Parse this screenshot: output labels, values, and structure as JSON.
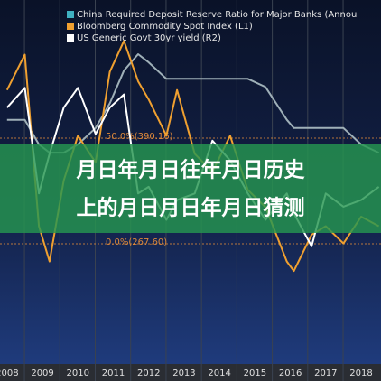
{
  "chart_data": {
    "type": "line",
    "overlay_title": [
      "月日年月日往年月日历史",
      "上的月日月日年月日猜测"
    ],
    "x": [
      2008.0,
      2008.5,
      2008.9,
      2009.2,
      2009.6,
      2010.0,
      2010.5,
      2010.9,
      2011.3,
      2011.7,
      2012.0,
      2012.5,
      2012.8,
      2013.3,
      2013.8,
      2014.3,
      2014.8,
      2015.3,
      2015.9,
      2016.1,
      2016.6,
      2017.0,
      2017.5,
      2018.0,
      2018.5
    ],
    "xlim": [
      2007.8,
      2018.56
    ],
    "xticks": [
      2008,
      2009,
      2010,
      2011,
      2012,
      2013,
      2014,
      2015,
      2016,
      2017,
      2018
    ],
    "ylim": [
      131.4,
      550.4
    ],
    "y2lim": [
      0.46,
      5.93
    ],
    "y3lim": [
      2.8,
      24.8
    ],
    "series": [
      {
        "name": "China Required Deposit Reserve Ratio for Major Banks (Annou",
        "color": "#9fb0b8",
        "legend_color": "#3fb0c0",
        "axis": "y3",
        "values": [
          17.5,
          17.5,
          16,
          15.5,
          15.5,
          16,
          17,
          18.5,
          20.5,
          21.5,
          21,
          20,
          20,
          20,
          20,
          20,
          20,
          19.5,
          17.5,
          17,
          17,
          17,
          17,
          16,
          15.5
        ]
      },
      {
        "name": "Bloomberg Commodity Spot Index (L1)",
        "color": "#f0a030",
        "axis": "y",
        "values": [
          446,
          487,
          288,
          247,
          341,
          393,
          362,
          467,
          503,
          456,
          435,
          393,
          446,
          372,
          351,
          393,
          330,
          310,
          247,
          236,
          278,
          288,
          268,
          299,
          288
        ]
      },
      {
        "name": "US Generic Govt 30yr yield (R2)",
        "color": "#ffffff",
        "axis": "y2",
        "values": [
          4.3,
          4.6,
          3.0,
          3.6,
          4.3,
          4.6,
          3.9,
          4.3,
          4.5,
          3.0,
          3.1,
          2.6,
          2.9,
          3.0,
          3.8,
          3.5,
          3.0,
          2.6,
          3.0,
          2.7,
          2.2,
          3.0,
          2.8,
          2.9,
          3.1
        ]
      }
    ],
    "annotations": [
      {
        "label": "50.0%(390.16)",
        "value": 390.16,
        "color": "#e08a3a"
      },
      {
        "label": "0.0%(267.60)",
        "value": 267.6,
        "color": "#e08a3a"
      }
    ]
  }
}
